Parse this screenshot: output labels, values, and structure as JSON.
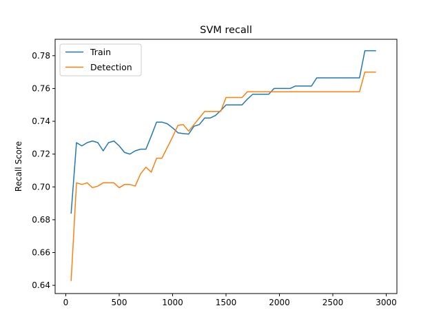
{
  "chart_data": {
    "type": "line",
    "title": "SVM recall",
    "xlabel": "",
    "ylabel": "Recall Score",
    "xlim": [
      -100,
      3100
    ],
    "ylim": [
      0.635,
      0.79
    ],
    "xticks": [
      0,
      500,
      1000,
      1500,
      2000,
      2500,
      3000
    ],
    "yticks": [
      0.64,
      0.66,
      0.68,
      0.7,
      0.72,
      0.74,
      0.76,
      0.78
    ],
    "grid": false,
    "legend_position": "upper left",
    "series": [
      {
        "name": "Train",
        "color": "#1f77b4",
        "x": [
          50,
          100,
          150,
          200,
          250,
          300,
          350,
          400,
          450,
          500,
          550,
          600,
          650,
          700,
          750,
          800,
          850,
          900,
          950,
          1000,
          1050,
          1100,
          1150,
          1200,
          1250,
          1300,
          1350,
          1400,
          1450,
          1500,
          1550,
          1600,
          1650,
          1700,
          1750,
          1800,
          1850,
          1900,
          1950,
          2000,
          2050,
          2100,
          2150,
          2200,
          2250,
          2300,
          2350,
          2400,
          2450,
          2500,
          2550,
          2600,
          2650,
          2700,
          2750,
          2800,
          2850,
          2900
        ],
        "y": [
          0.684,
          0.727,
          0.725,
          0.727,
          0.728,
          0.727,
          0.722,
          0.727,
          0.728,
          0.725,
          0.721,
          0.72,
          0.722,
          0.723,
          0.723,
          0.731,
          0.7395,
          0.7395,
          0.7385,
          0.736,
          0.733,
          0.7325,
          0.7322,
          0.737,
          0.738,
          0.742,
          0.742,
          0.7435,
          0.7465,
          0.75,
          0.75,
          0.75,
          0.75,
          0.7535,
          0.7565,
          0.7565,
          0.7565,
          0.7565,
          0.76,
          0.76,
          0.76,
          0.76,
          0.7615,
          0.7615,
          0.7615,
          0.7615,
          0.7665,
          0.7665,
          0.7665,
          0.7665,
          0.7665,
          0.7665,
          0.7665,
          0.7665,
          0.7665,
          0.783,
          0.783,
          0.783
        ]
      },
      {
        "name": "Detection",
        "color": "#ff7f0e",
        "x": [
          50,
          100,
          150,
          200,
          250,
          300,
          350,
          400,
          450,
          500,
          550,
          600,
          650,
          700,
          750,
          800,
          850,
          900,
          950,
          1000,
          1050,
          1100,
          1150,
          1200,
          1250,
          1300,
          1350,
          1400,
          1450,
          1500,
          1550,
          1600,
          1650,
          1700,
          1750,
          1800,
          1850,
          1900,
          1950,
          2000,
          2050,
          2100,
          2150,
          2200,
          2250,
          2300,
          2350,
          2400,
          2450,
          2500,
          2550,
          2600,
          2650,
          2700,
          2750,
          2800,
          2850,
          2900
        ],
        "y": [
          0.643,
          0.7025,
          0.7015,
          0.7025,
          0.6995,
          0.7005,
          0.7025,
          0.7025,
          0.7025,
          0.6995,
          0.7015,
          0.7015,
          0.7005,
          0.708,
          0.712,
          0.709,
          0.7175,
          0.7175,
          0.724,
          0.7305,
          0.7375,
          0.738,
          0.734,
          0.738,
          0.742,
          0.746,
          0.746,
          0.746,
          0.746,
          0.7545,
          0.7545,
          0.7545,
          0.7545,
          0.758,
          0.758,
          0.758,
          0.758,
          0.758,
          0.758,
          0.758,
          0.758,
          0.758,
          0.758,
          0.758,
          0.758,
          0.758,
          0.758,
          0.758,
          0.758,
          0.758,
          0.758,
          0.758,
          0.758,
          0.758,
          0.758,
          0.77,
          0.77,
          0.77
        ]
      }
    ]
  }
}
